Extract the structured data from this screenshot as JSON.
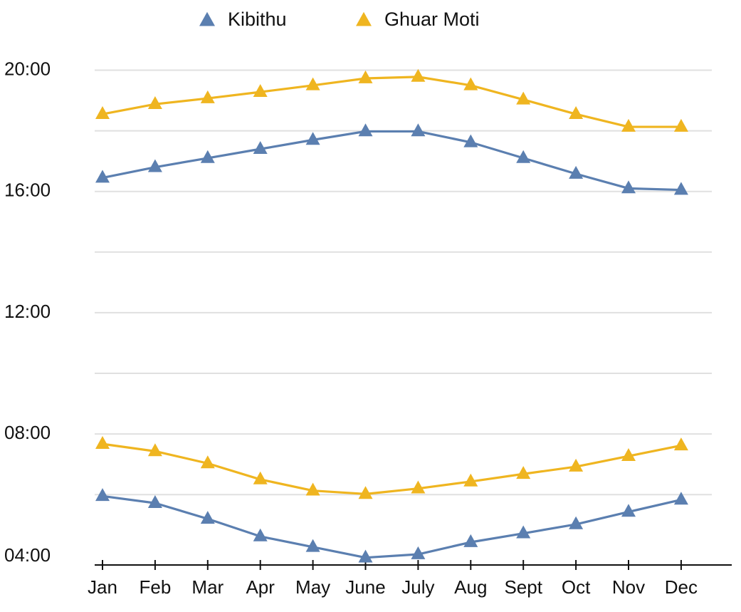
{
  "chart_data": {
    "type": "line",
    "title": "",
    "xlabel": "",
    "ylabel": "",
    "categories": [
      "Jan",
      "Feb",
      "Mar",
      "Apr",
      "May",
      "June",
      "July",
      "Aug",
      "Sept",
      "Oct",
      "Nov",
      "Dec"
    ],
    "y_unit": "time of day (hours)",
    "ylim": [
      3.67,
      20.33
    ],
    "y_ticks": [
      {
        "value": 4,
        "label": "04:00"
      },
      {
        "value": 8,
        "label": "08:00"
      },
      {
        "value": 12,
        "label": "12:00"
      },
      {
        "value": 16,
        "label": "16:00"
      },
      {
        "value": 20,
        "label": "20:00"
      }
    ],
    "grid_lines": [
      6,
      8,
      10,
      12,
      14,
      16,
      18,
      20
    ],
    "grid": true,
    "legend_position": "top-center",
    "marker": "triangle",
    "series": [
      {
        "name": "Kibithu",
        "color": "#5b7fb0",
        "lines": [
          {
            "part": "sunset",
            "values": [
              16.45,
              16.8,
              17.1,
              17.4,
              17.7,
              17.98,
              17.98,
              17.62,
              17.1,
              16.58,
              16.1,
              16.05
            ]
          },
          {
            "part": "sunrise",
            "values": [
              5.95,
              5.72,
              5.2,
              4.62,
              4.27,
              3.92,
              4.03,
              4.43,
              4.72,
              5.02,
              5.43,
              5.83
            ]
          }
        ]
      },
      {
        "name": "Ghuar Moti",
        "color": "#efb520",
        "lines": [
          {
            "part": "sunset",
            "values": [
              18.55,
              18.88,
              19.07,
              19.28,
              19.5,
              19.73,
              19.78,
              19.5,
              19.03,
              18.55,
              18.13,
              18.13
            ]
          },
          {
            "part": "sunrise",
            "values": [
              7.67,
              7.43,
              7.03,
              6.5,
              6.13,
              6.02,
              6.2,
              6.43,
              6.68,
              6.92,
              7.27,
              7.62
            ]
          }
        ]
      }
    ]
  }
}
